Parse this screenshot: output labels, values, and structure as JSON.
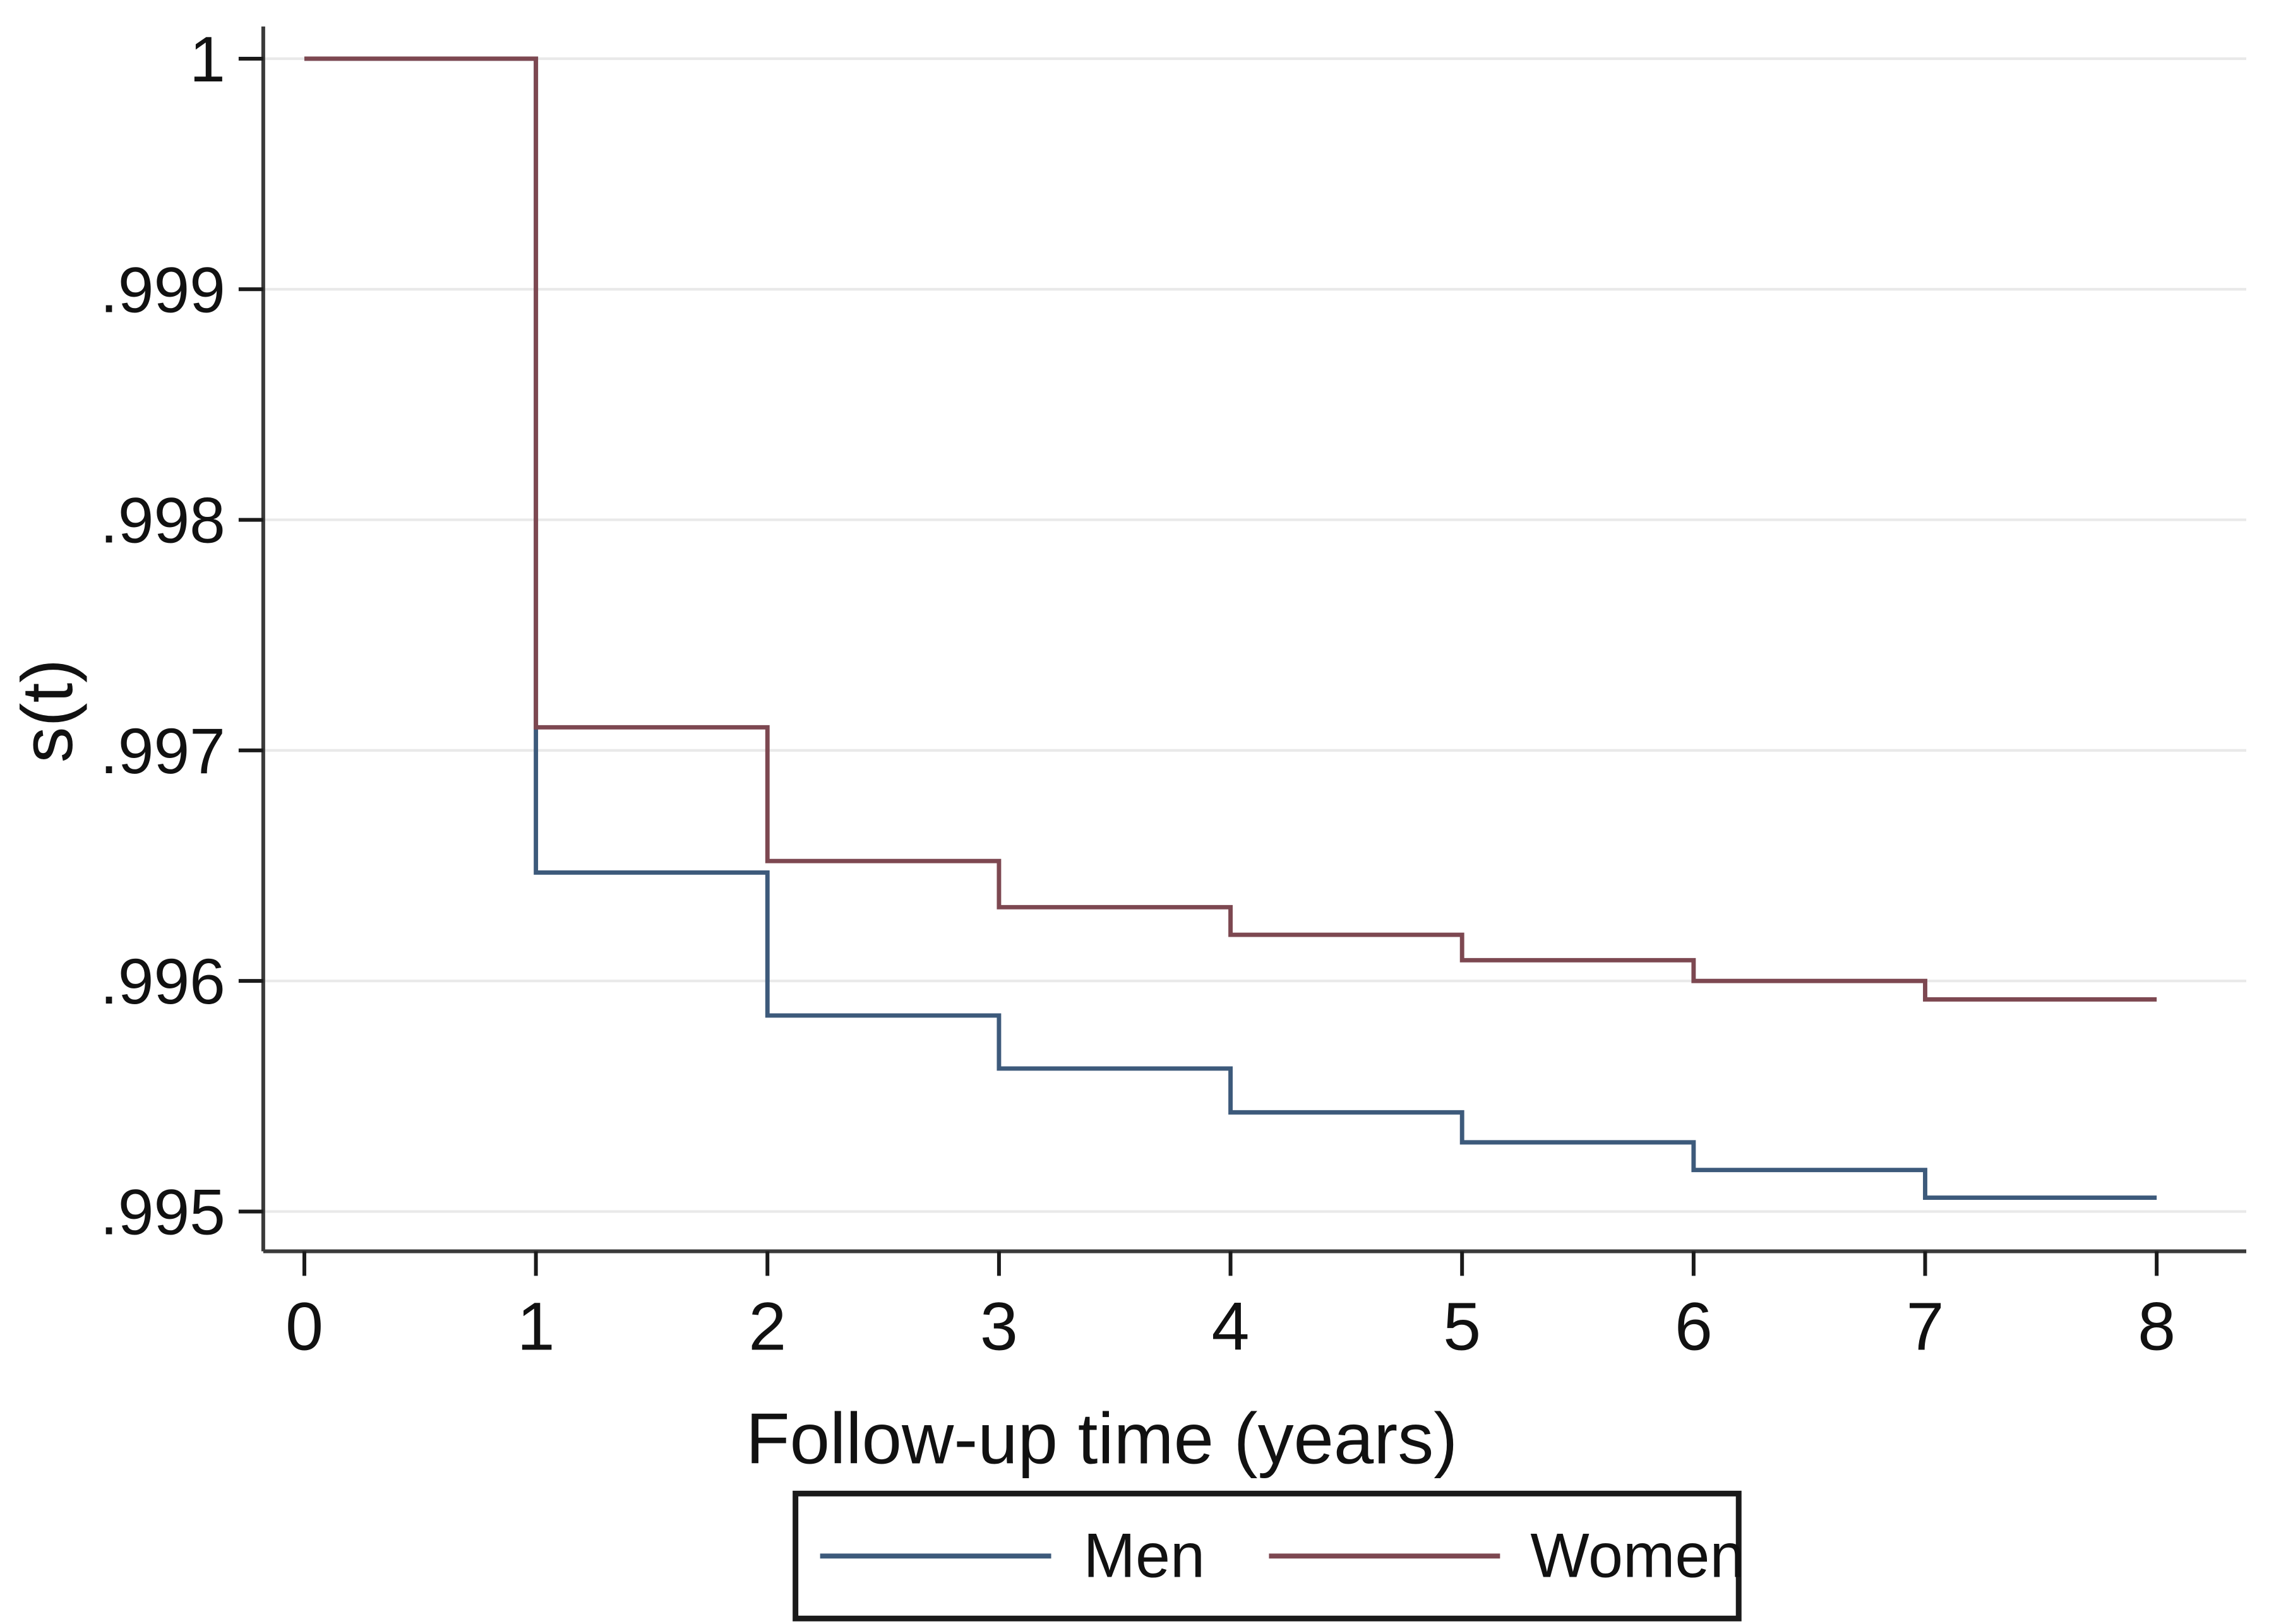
{
  "figure": {
    "background": "#ffffff",
    "description": "Kaplan-Meier style survival step plot, two groups, Stata-like styling"
  },
  "chart_data": {
    "type": "line",
    "subtype": "step-survival",
    "title": "",
    "xlabel": "Follow-up time (years)",
    "ylabel": "s(t)",
    "x_ticks": [
      0,
      1,
      2,
      3,
      4,
      5,
      6,
      7,
      8
    ],
    "x_tick_labels": [
      "0",
      "1",
      "2",
      "3",
      "4",
      "5",
      "6",
      "7",
      "8"
    ],
    "y_ticks": [
      1,
      0.999,
      0.998,
      0.997,
      0.996,
      0.995
    ],
    "y_tick_labels": [
      "1",
      ".999",
      ".998",
      ".997",
      ".996",
      ".995"
    ],
    "xlim": [
      0,
      8
    ],
    "ylim": [
      0.9948,
      1.0002
    ],
    "grid": "horizontal",
    "gridline_color": "#e9e9e9",
    "axis_color": "#3a3a3a",
    "tick_color": "#1a1a1a",
    "legend_position": "bottom",
    "series": [
      {
        "name": "Men",
        "color": "#3d5a7b",
        "step_times": [
          0,
          1,
          2,
          3,
          4,
          5,
          6,
          7
        ],
        "step_values": [
          1.0,
          0.99647,
          0.99585,
          0.99562,
          0.99543,
          0.9953,
          0.99518,
          0.99506
        ],
        "end_time": 8
      },
      {
        "name": "Women",
        "color": "#7d4851",
        "step_times": [
          0,
          1,
          2,
          3,
          4,
          5,
          6,
          7
        ],
        "step_values": [
          1.0,
          0.9971,
          0.99652,
          0.99632,
          0.9962,
          0.99609,
          0.996,
          0.99592
        ],
        "end_time": 8
      }
    ]
  },
  "legend": {
    "border_color": "#1a1a1a",
    "items": [
      {
        "label": "Men",
        "color": "#3d5a7b"
      },
      {
        "label": "Women",
        "color": "#7d4851"
      }
    ]
  }
}
